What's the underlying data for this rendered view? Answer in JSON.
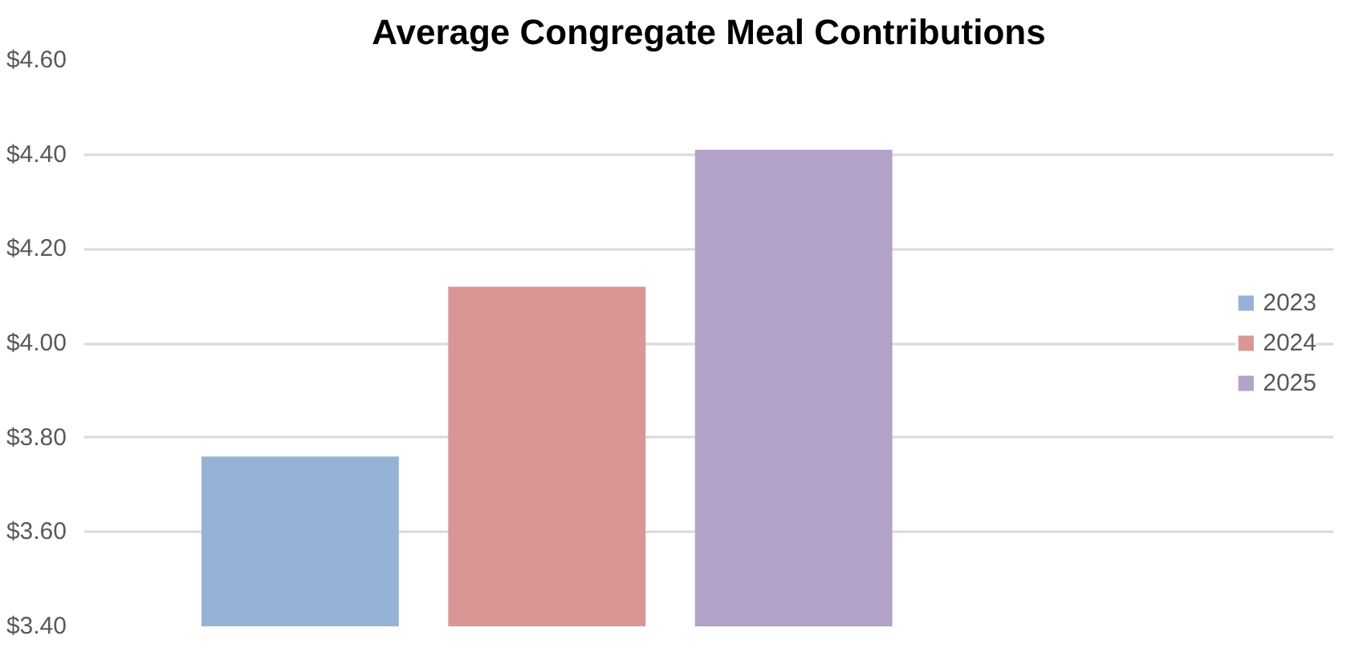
{
  "chart_data": {
    "type": "bar",
    "title": "Average Congregate Meal Contributions",
    "categories": [
      null
    ],
    "series": [
      {
        "name": "2023",
        "color": "#95b3d7",
        "values": [
          3.76
        ]
      },
      {
        "name": "2024",
        "color": "#d99694",
        "values": [
          4.12
        ]
      },
      {
        "name": "2025",
        "color": "#b3a2c7",
        "values": [
          4.41
        ]
      }
    ],
    "ylim": [
      3.4,
      4.6
    ],
    "yticks": [
      {
        "value": 3.4,
        "label": "$3.40"
      },
      {
        "value": 3.6,
        "label": "$3.60"
      },
      {
        "value": 3.8,
        "label": "$3.80"
      },
      {
        "value": 4.0,
        "label": "$4.00"
      },
      {
        "value": 4.2,
        "label": "$4.20"
      },
      {
        "value": 4.4,
        "label": "$4.40"
      },
      {
        "value": 4.6,
        "label": "$4.60"
      }
    ],
    "grid": "y",
    "legend": "right",
    "tick_labels": "y"
  }
}
